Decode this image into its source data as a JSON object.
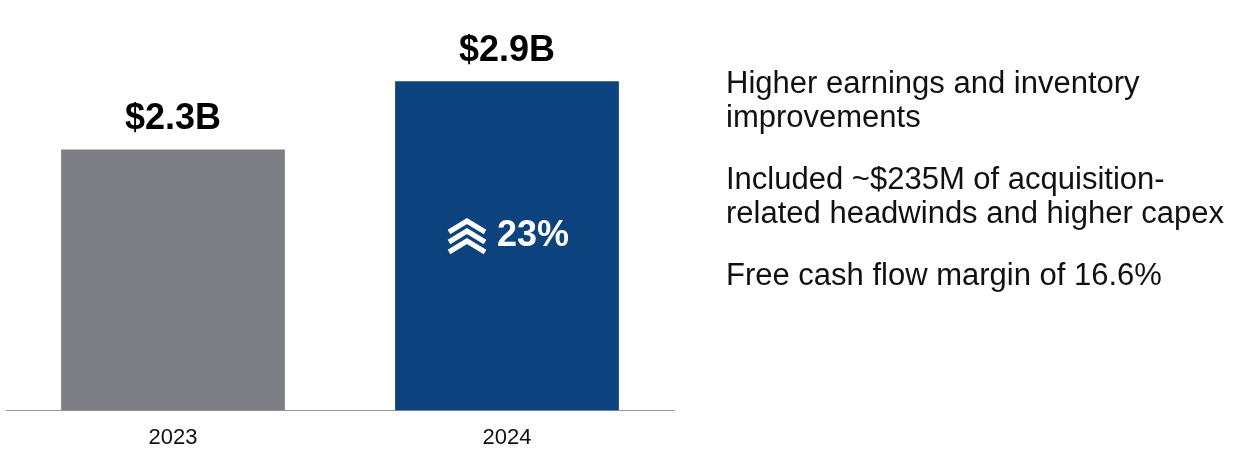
{
  "chart_data": {
    "type": "bar",
    "categories": [
      "2023",
      "2024"
    ],
    "colors": [
      "#7e7f84",
      "#0c427e"
    ],
    "values": [
      2.3,
      2.9
    ],
    "value_labels": [
      "$2.3B",
      "$2.9B"
    ],
    "annotations": [
      "23%",
      "Higher earnings and inventory improvements",
      "Included ~$235M of acquisition-related headwinds and higher capex",
      "Free cash flow margin of 16.6%"
    ],
    "grid": false,
    "legend": false
  }
}
